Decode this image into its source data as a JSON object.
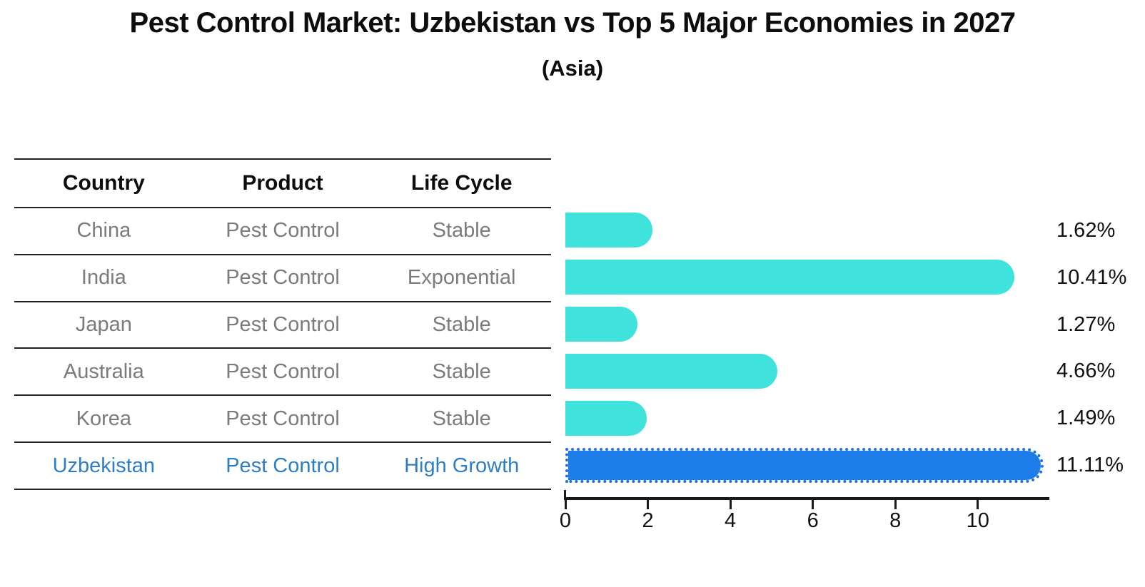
{
  "title": "Pest Control Market: Uzbekistan vs Top 5 Major Economies in 2027",
  "subtitle": "(Asia)",
  "table": {
    "headers": [
      "Country",
      "Product",
      "Life Cycle"
    ],
    "rows": [
      {
        "country": "China",
        "product": "Pest Control",
        "life_cycle": "Stable",
        "highlight": false
      },
      {
        "country": "India",
        "product": "Pest Control",
        "life_cycle": "Exponential",
        "highlight": false
      },
      {
        "country": "Japan",
        "product": "Pest Control",
        "life_cycle": "Stable",
        "highlight": false
      },
      {
        "country": "Australia",
        "product": "Pest Control",
        "life_cycle": "Stable",
        "highlight": false
      },
      {
        "country": "Korea",
        "product": "Pest Control",
        "life_cycle": "Stable",
        "highlight": false
      },
      {
        "country": "Uzbekistan",
        "product": "Pest Control",
        "life_cycle": "High Growth",
        "highlight": true
      }
    ]
  },
  "chart_data": {
    "type": "bar",
    "orientation": "horizontal",
    "title": "Pest Control Market: Uzbekistan vs Top 5 Major Economies in 2027 (Asia)",
    "categories": [
      "China",
      "India",
      "Japan",
      "Australia",
      "Korea",
      "Uzbekistan"
    ],
    "values": [
      1.62,
      10.41,
      1.27,
      4.66,
      1.49,
      11.11
    ],
    "value_labels": [
      "1.62%",
      "10.41%",
      "1.27%",
      "4.66%",
      "1.49%",
      "11.11%"
    ],
    "xlabel": "",
    "ylabel": "",
    "xlim": [
      0,
      11.7
    ],
    "x_ticks": [
      0,
      2,
      4,
      6,
      8,
      10
    ],
    "grid": false,
    "legend": false,
    "bar_color": "#40e3dc",
    "highlight_bar_color": "#1d7de8",
    "highlight_index": 5
  },
  "colors": {
    "bar": "#40e3dc",
    "highlight_bar": "#1d7de8",
    "highlight_text": "#2e7ec6",
    "row_text": "#7b7b7b",
    "heading_text": "#0d0d0d",
    "line": "#222222"
  }
}
